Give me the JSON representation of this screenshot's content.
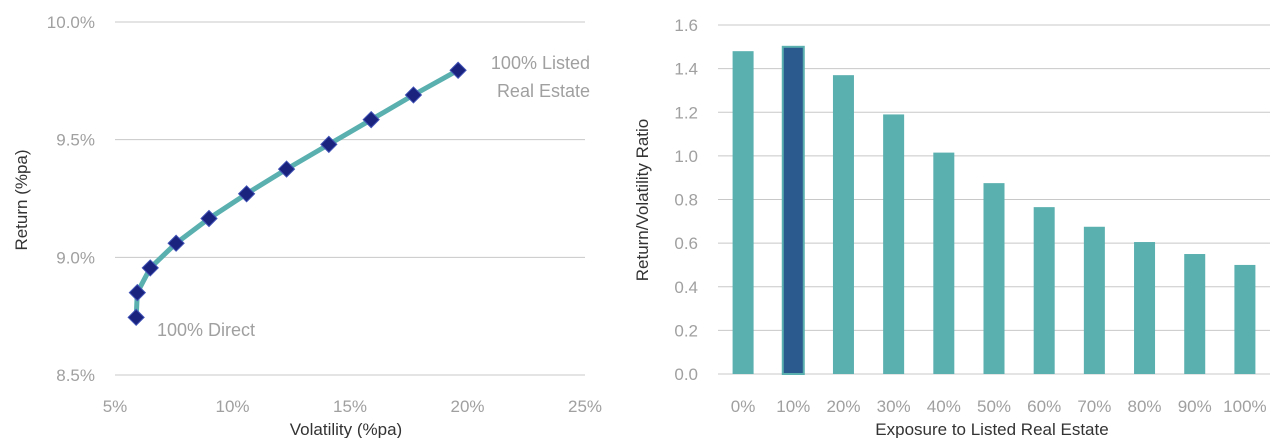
{
  "chart_data": [
    {
      "type": "line",
      "title": "",
      "xlabel": "Volatility (%pa)",
      "ylabel": "Return (%pa)",
      "xlim": [
        5,
        25
      ],
      "ylim": [
        8.5,
        10.0
      ],
      "xticks": [
        "5%",
        "10%",
        "15%",
        "20%",
        "25%"
      ],
      "yticks": [
        "8.5%",
        "9.0%",
        "9.5%",
        "10.0%"
      ],
      "grid": true,
      "series": [
        {
          "x": [
            5.9,
            5.95,
            6.5,
            7.6,
            9.0,
            10.6,
            12.3,
            14.1,
            15.9,
            17.7,
            19.6
          ],
          "y": [
            8.745,
            8.85,
            8.955,
            9.06,
            9.165,
            9.27,
            9.375,
            9.48,
            9.585,
            9.69,
            9.795
          ]
        }
      ],
      "annotations": [
        {
          "text": "100% Direct"
        },
        {
          "text": "100% Listed"
        },
        {
          "text": "Real Estate"
        }
      ],
      "colors": {
        "line": "#5aafaf",
        "marker": "#1a237e"
      }
    },
    {
      "type": "bar",
      "title": "",
      "xlabel": "Exposure to Listed Real Estate",
      "ylabel": "Return/Volatility Ratio",
      "ylim": [
        0,
        1.6
      ],
      "yticks": [
        "0.0",
        "0.2",
        "0.4",
        "0.6",
        "0.8",
        "1.0",
        "1.2",
        "1.4",
        "1.6"
      ],
      "grid": true,
      "categories": [
        "0%",
        "10%",
        "20%",
        "30%",
        "40%",
        "50%",
        "60%",
        "70%",
        "80%",
        "90%",
        "100%"
      ],
      "values": [
        1.48,
        1.5,
        1.37,
        1.19,
        1.015,
        0.875,
        0.765,
        0.675,
        0.605,
        0.55,
        0.5
      ],
      "highlight_index": 1,
      "colors": {
        "bar": "#5aafaf",
        "highlight": "#2b5a8e",
        "highlight_border": "#5aafaf"
      }
    }
  ]
}
